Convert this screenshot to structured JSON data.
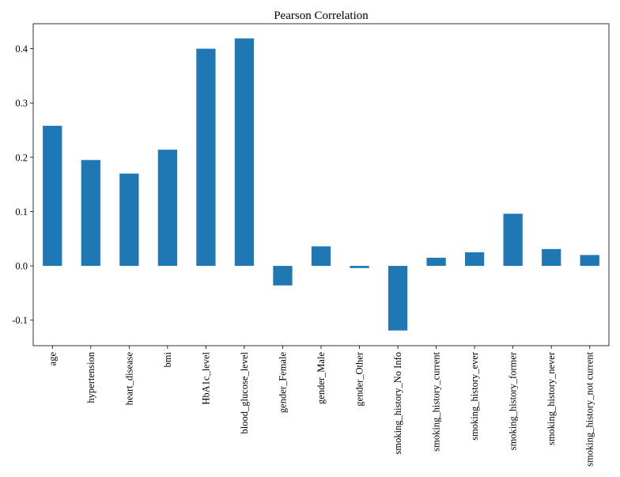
{
  "chart_data": {
    "type": "bar",
    "title": "Pearson Correlation",
    "xlabel": "",
    "ylabel": "",
    "categories": [
      "age",
      "hypertension",
      "heart_disease",
      "bmi",
      "HbA1c_level",
      "blood_glucose_level",
      "gender_Female",
      "gender_Male",
      "gender_Other",
      "smoking_history_No Info",
      "smoking_history_current",
      "smoking_history_ever",
      "smoking_history_former",
      "smoking_history_never",
      "smoking_history_not current"
    ],
    "values": [
      0.258,
      0.195,
      0.17,
      0.214,
      0.4,
      0.419,
      -0.036,
      0.036,
      -0.004,
      -0.119,
      0.015,
      0.025,
      0.096,
      0.031,
      0.02
    ],
    "ylim": [
      -0.147,
      0.446
    ],
    "yticks": [
      -0.1,
      0.0,
      0.1,
      0.2,
      0.3,
      0.4
    ],
    "ytick_labels": [
      "-0.1",
      "0.0",
      "0.1",
      "0.2",
      "0.3",
      "0.4"
    ],
    "bar_color": "#1f77b4",
    "grid": false,
    "legend": "none"
  }
}
